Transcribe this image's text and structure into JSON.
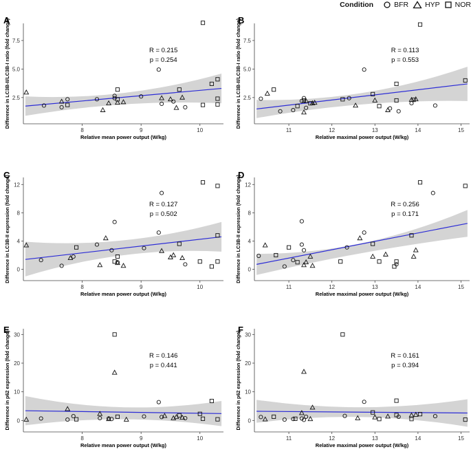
{
  "legend": {
    "title": "Condition",
    "items": [
      {
        "label": "BFR",
        "shape": "circle"
      },
      {
        "label": "HYP",
        "shape": "triangle"
      },
      {
        "label": "NOR",
        "shape": "square"
      }
    ]
  },
  "colors": {
    "line": "#2b2bd6",
    "band": "#d4d4d4",
    "marker": "#111111",
    "axis": "#444444"
  },
  "chart_data": [
    {
      "panel": "A",
      "type": "scatter",
      "ylabel": "Difference in LC3B-II/LC3B-I ratio (fold change)",
      "xlabel": "Relative mean power output (W/kg)",
      "xlim": [
        7.0,
        10.4
      ],
      "ylim": [
        0.2,
        9.0
      ],
      "xticks": [
        8,
        9,
        10
      ],
      "yticks": [
        2.5,
        5.0,
        7.5
      ],
      "yticklabels": [
        "2.5",
        "5.0",
        "7.5"
      ],
      "stats": {
        "r": "R = 0.215",
        "p": "p = 0.254"
      },
      "fit": {
        "y0": 1.75,
        "y1": 3.3,
        "ci0": [
          0.9,
          2.6
        ],
        "ci1": [
          2.0,
          4.6
        ],
        "cim": [
          1.9,
          2.9
        ]
      },
      "points": {
        "BFR": [
          [
            7.35,
            1.8
          ],
          [
            7.65,
            1.65
          ],
          [
            7.75,
            2.35
          ],
          [
            8.25,
            2.35
          ],
          [
            8.55,
            2.45
          ],
          [
            8.55,
            2.65
          ],
          [
            9.0,
            2.6
          ],
          [
            9.3,
            4.95
          ],
          [
            9.35,
            1.95
          ],
          [
            9.55,
            2.15
          ],
          [
            9.75,
            1.65
          ]
        ],
        "HYP": [
          [
            7.05,
            2.95
          ],
          [
            7.65,
            2.15
          ],
          [
            8.35,
            1.4
          ],
          [
            8.45,
            2.0
          ],
          [
            8.6,
            2.05
          ],
          [
            8.7,
            2.1
          ],
          [
            9.35,
            2.45
          ],
          [
            9.5,
            2.35
          ],
          [
            9.6,
            1.6
          ],
          [
            9.7,
            2.5
          ]
        ],
        "NOR": [
          [
            7.75,
            1.85
          ],
          [
            8.6,
            2.35
          ],
          [
            8.6,
            3.2
          ],
          [
            9.65,
            3.2
          ],
          [
            10.05,
            9.05
          ],
          [
            10.2,
            3.7
          ],
          [
            10.3,
            4.1
          ],
          [
            10.3,
            2.4
          ],
          [
            10.3,
            1.9
          ],
          [
            10.05,
            1.85
          ]
        ]
      }
    },
    {
      "panel": "B",
      "type": "scatter",
      "ylabel": "Difference in LC3B-II/LC3B-I ratio (fold change)",
      "xlabel": "Relative maximal power output (W/kg)",
      "xlim": [
        10.2,
        15.2
      ],
      "ylim": [
        0.2,
        9.0
      ],
      "xticks": [
        11,
        12,
        13,
        14,
        15
      ],
      "yticks": [
        2.5,
        5.0,
        7.5
      ],
      "yticklabels": [
        "2.5",
        "5.0",
        "7.5"
      ],
      "stats": {
        "r": "R = 0.113",
        "p": "p = 0.553"
      },
      "fit": {
        "y0": 1.5,
        "y1": 3.7,
        "ci0": [
          0.7,
          2.3
        ],
        "ci1": [
          2.2,
          5.2
        ],
        "cim": [
          1.9,
          2.9
        ]
      },
      "points": {
        "BFR": [
          [
            10.35,
            2.4
          ],
          [
            10.8,
            1.3
          ],
          [
            11.1,
            1.4
          ],
          [
            11.3,
            2.2
          ],
          [
            11.35,
            2.45
          ],
          [
            11.4,
            1.6
          ],
          [
            12.4,
            2.45
          ],
          [
            12.75,
            4.95
          ],
          [
            13.35,
            1.55
          ],
          [
            13.55,
            1.3
          ],
          [
            13.85,
            2.0
          ],
          [
            14.4,
            1.8
          ]
        ],
        "HYP": [
          [
            10.5,
            2.85
          ],
          [
            11.35,
            1.2
          ],
          [
            11.4,
            2.2
          ],
          [
            11.55,
            2.0
          ],
          [
            11.6,
            2.05
          ],
          [
            12.55,
            1.8
          ],
          [
            13.0,
            2.25
          ],
          [
            13.3,
            1.4
          ],
          [
            13.85,
            2.3
          ],
          [
            13.95,
            2.35
          ]
        ],
        "NOR": [
          [
            10.65,
            3.2
          ],
          [
            11.2,
            1.75
          ],
          [
            11.35,
            2.25
          ],
          [
            11.5,
            2.0
          ],
          [
            12.25,
            2.35
          ],
          [
            12.95,
            2.8
          ],
          [
            13.1,
            1.75
          ],
          [
            13.5,
            3.7
          ],
          [
            13.5,
            2.25
          ],
          [
            13.9,
            2.3
          ],
          [
            14.05,
            8.9
          ],
          [
            15.1,
            4.0
          ]
        ]
      }
    },
    {
      "panel": "C",
      "type": "scatter",
      "ylabel": "Difference in LC3B-II expression (fold change)",
      "xlabel": "Relative mean power output (W/kg)",
      "xlim": [
        7.0,
        10.4
      ],
      "ylim": [
        -1.6,
        13.0
      ],
      "xticks": [
        8,
        9,
        10
      ],
      "yticks": [
        0,
        4,
        8,
        12
      ],
      "yticklabels": [
        "0",
        "4",
        "8",
        "12"
      ],
      "stats": {
        "r": "R = 0.127",
        "p": "p = 0.502"
      },
      "fit": {
        "y0": 1.4,
        "y1": 4.6,
        "ci0": [
          -1.0,
          3.9
        ],
        "ci1": [
          2.5,
          6.7
        ],
        "cim": [
          2.0,
          4.1
        ]
      },
      "points": {
        "BFR": [
          [
            7.3,
            1.3
          ],
          [
            7.65,
            0.5
          ],
          [
            7.85,
            1.8
          ],
          [
            8.25,
            3.5
          ],
          [
            8.5,
            2.7
          ],
          [
            8.55,
            6.7
          ],
          [
            8.6,
            1.0
          ],
          [
            9.05,
            3.0
          ],
          [
            9.3,
            5.2
          ],
          [
            9.35,
            10.8
          ],
          [
            9.75,
            0.7
          ]
        ],
        "HYP": [
          [
            7.05,
            3.4
          ],
          [
            7.8,
            1.6
          ],
          [
            8.3,
            0.6
          ],
          [
            8.4,
            4.4
          ],
          [
            8.6,
            0.9
          ],
          [
            8.7,
            0.5
          ],
          [
            9.35,
            2.6
          ],
          [
            9.5,
            1.7
          ],
          [
            9.55,
            2.0
          ],
          [
            9.7,
            1.6
          ]
        ],
        "NOR": [
          [
            7.9,
            3.1
          ],
          [
            8.55,
            1.1
          ],
          [
            8.6,
            1.8
          ],
          [
            9.65,
            3.6
          ],
          [
            10.0,
            1.1
          ],
          [
            10.05,
            12.3
          ],
          [
            10.2,
            0.4
          ],
          [
            10.3,
            11.8
          ],
          [
            10.3,
            1.1
          ],
          [
            10.3,
            4.8
          ]
        ]
      }
    },
    {
      "panel": "D",
      "type": "scatter",
      "ylabel": "Difference in LC3B-II expression (fold change)",
      "xlabel": "Relative maximal power output (W/kg)",
      "xlim": [
        10.2,
        15.2
      ],
      "ylim": [
        -1.6,
        13.0
      ],
      "xticks": [
        11,
        12,
        13,
        14,
        15
      ],
      "yticks": [
        0,
        4,
        8,
        12
      ],
      "yticklabels": [
        "0",
        "4",
        "8",
        "12"
      ],
      "stats": {
        "r": "R = 0.256",
        "p": "p = 0.171"
      },
      "fit": {
        "y0": 0.7,
        "y1": 6.5,
        "ci0": [
          -0.8,
          2.2
        ],
        "ci1": [
          4.6,
          8.4
        ],
        "cim": [
          2.3,
          3.7
        ]
      },
      "points": {
        "BFR": [
          [
            10.3,
            1.9
          ],
          [
            10.9,
            0.4
          ],
          [
            11.1,
            1.3
          ],
          [
            11.3,
            3.5
          ],
          [
            11.3,
            6.8
          ],
          [
            11.35,
            2.7
          ],
          [
            12.35,
            3.1
          ],
          [
            12.75,
            5.2
          ],
          [
            13.5,
            0.7
          ],
          [
            14.35,
            10.8
          ]
        ],
        "HYP": [
          [
            10.45,
            3.4
          ],
          [
            11.35,
            0.6
          ],
          [
            11.4,
            1.0
          ],
          [
            11.5,
            1.8
          ],
          [
            11.55,
            0.5
          ],
          [
            12.65,
            4.4
          ],
          [
            12.95,
            1.8
          ],
          [
            13.25,
            2.1
          ],
          [
            13.9,
            1.8
          ],
          [
            13.95,
            2.7
          ]
        ],
        "NOR": [
          [
            10.7,
            2.0
          ],
          [
            11.0,
            3.1
          ],
          [
            11.2,
            1.0
          ],
          [
            12.2,
            1.1
          ],
          [
            12.95,
            3.6
          ],
          [
            13.1,
            1.1
          ],
          [
            13.45,
            0.4
          ],
          [
            13.5,
            1.1
          ],
          [
            13.85,
            4.8
          ],
          [
            14.05,
            12.3
          ],
          [
            15.1,
            11.8
          ]
        ]
      }
    },
    {
      "panel": "E",
      "type": "scatter",
      "ylabel": "Difference in p62 expression (fold change)",
      "xlabel": "Relative mean power output (W/kg)",
      "xlim": [
        7.0,
        10.4
      ],
      "ylim": [
        -4.0,
        32.0
      ],
      "xticks": [
        8,
        9,
        10
      ],
      "yticks": [
        0,
        10,
        20,
        30
      ],
      "yticklabels": [
        "0",
        "10",
        "20",
        "30"
      ],
      "stats": {
        "r": "R = 0.146",
        "p": "p = 0.441"
      },
      "fit": {
        "y0": 3.4,
        "y1": 2.4,
        "ci0": [
          -1.7,
          8.5
        ],
        "ci1": [
          -2.0,
          6.8
        ],
        "cim": [
          0.4,
          4.6
        ]
      },
      "points": {
        "BFR": [
          [
            7.3,
            0.7
          ],
          [
            7.75,
            0.3
          ],
          [
            7.85,
            1.5
          ],
          [
            8.3,
            0.8
          ],
          [
            8.45,
            0.7
          ],
          [
            8.5,
            0.5
          ],
          [
            9.05,
            1.4
          ],
          [
            9.3,
            6.4
          ],
          [
            9.35,
            1.2
          ],
          [
            9.75,
            0.8
          ]
        ],
        "HYP": [
          [
            7.05,
            0.3
          ],
          [
            7.75,
            4.0
          ],
          [
            8.3,
            2.3
          ],
          [
            8.45,
            0.5
          ],
          [
            8.55,
            16.7
          ],
          [
            8.75,
            0.3
          ],
          [
            9.4,
            1.6
          ],
          [
            9.55,
            0.8
          ],
          [
            9.6,
            1.2
          ],
          [
            9.7,
            1.0
          ]
        ],
        "NOR": [
          [
            7.9,
            0.4
          ],
          [
            8.55,
            30.0
          ],
          [
            8.6,
            1.3
          ],
          [
            9.65,
            1.8
          ],
          [
            10.0,
            2.3
          ],
          [
            10.05,
            0.6
          ],
          [
            10.2,
            6.8
          ],
          [
            10.3,
            0.4
          ]
        ]
      }
    },
    {
      "panel": "F",
      "type": "scatter",
      "ylabel": "Difference in p62 expression (fold change)",
      "xlabel": "Relative maximal power output (W/kg)",
      "xlim": [
        10.2,
        15.2
      ],
      "ylim": [
        -4.0,
        32.0
      ],
      "xticks": [
        11,
        12,
        13,
        14,
        15
      ],
      "yticks": [
        0,
        10,
        20,
        30
      ],
      "yticklabels": [
        "0",
        "10",
        "20",
        "30"
      ],
      "stats": {
        "r": "R = 0.161",
        "p": "p = 0.394"
      },
      "fit": {
        "y0": 3.2,
        "y1": 2.6,
        "ci0": [
          -0.8,
          7.2
        ],
        "ci1": [
          -2.2,
          7.4
        ],
        "cim": [
          1.2,
          4.6
        ]
      },
      "points": {
        "BFR": [
          [
            10.35,
            1.2
          ],
          [
            10.9,
            0.3
          ],
          [
            11.1,
            0.5
          ],
          [
            11.3,
            0.7
          ],
          [
            11.35,
            0.2
          ],
          [
            11.4,
            1.3
          ],
          [
            12.3,
            1.6
          ],
          [
            12.75,
            6.5
          ],
          [
            13.55,
            1.3
          ],
          [
            14.4,
            1.5
          ]
        ],
        "HYP": [
          [
            10.45,
            0.4
          ],
          [
            11.3,
            2.6
          ],
          [
            11.35,
            17.0
          ],
          [
            11.5,
            0.5
          ],
          [
            11.55,
            4.5
          ],
          [
            12.6,
            0.8
          ],
          [
            13.0,
            1.1
          ],
          [
            13.3,
            1.4
          ],
          [
            13.85,
            1.8
          ],
          [
            13.95,
            2.0
          ]
        ],
        "NOR": [
          [
            10.65,
            1.3
          ],
          [
            11.15,
            0.6
          ],
          [
            12.25,
            30.0
          ],
          [
            12.95,
            2.8
          ],
          [
            13.1,
            0.5
          ],
          [
            13.5,
            6.9
          ],
          [
            13.5,
            1.9
          ],
          [
            13.85,
            0.5
          ],
          [
            14.05,
            2.2
          ],
          [
            15.1,
            0.3
          ]
        ]
      }
    }
  ]
}
